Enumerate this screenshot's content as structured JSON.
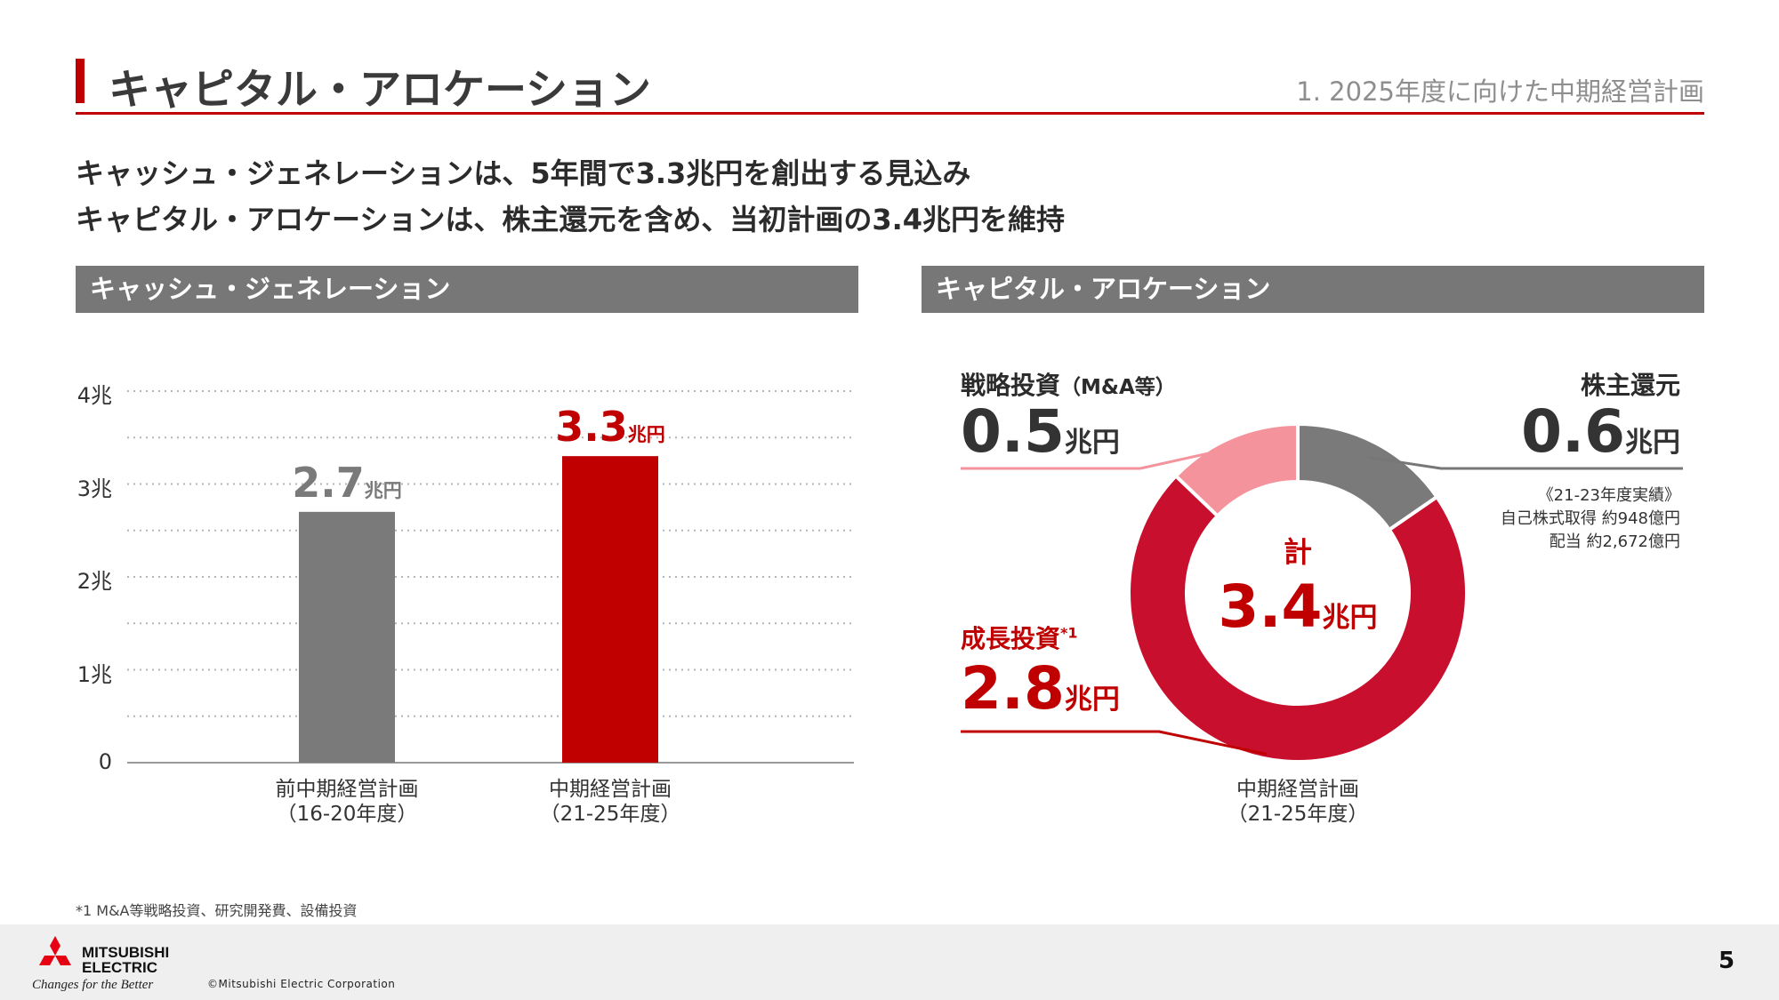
{
  "header": {
    "title": "キャピタル・アロケーション",
    "section": "1. 2025年度に向けた中期経営計画"
  },
  "lead": {
    "line1": "キャッシュ・ジェネレーションは、5年間で3.3兆円を創出する見込み",
    "line2": "キャピタル・アロケーションは、株主還元を含め、当初計画の3.4兆円を維持"
  },
  "panels": {
    "left_title": "キャッシュ・ジェネレーション",
    "right_title": "キャピタル・アロケーション"
  },
  "chart_data": [
    {
      "type": "bar",
      "categories": [
        "前中期経営計画\n（16-20年度）",
        "中期経営計画\n（21-25年度）"
      ],
      "category_lines": [
        [
          "前中期経営計画",
          "（16-20年度）"
        ],
        [
          "中期経営計画",
          "（21-25年度）"
        ]
      ],
      "values": [
        2.7,
        3.3
      ],
      "value_labels": [
        {
          "value": "2.7",
          "unit": "兆円"
        },
        {
          "value": "3.3",
          "unit": "兆円"
        }
      ],
      "bar_colors": [
        "#7a7a7a",
        "#c00000"
      ],
      "label_colors": [
        "#7a7a7a",
        "#c00000"
      ],
      "yticks": [
        {
          "value": 0,
          "label": "0"
        },
        {
          "value": 1,
          "label": "1兆"
        },
        {
          "value": 2,
          "label": "2兆"
        },
        {
          "value": 3,
          "label": "3兆"
        },
        {
          "value": 4,
          "label": "4兆"
        }
      ],
      "ylim": [
        0,
        4
      ],
      "grid": "dotted, every 0.5兆"
    },
    {
      "type": "pie",
      "style": "donut",
      "categories": [
        "株主還元",
        "成長投資*1",
        "戦略投資（M&A等）"
      ],
      "values": [
        0.6,
        2.8,
        0.5
      ],
      "colors": [
        "#7a7a7a",
        "#c8102e",
        "#f4939b"
      ],
      "center": {
        "label": "計",
        "value": "3.4",
        "unit": "兆円"
      },
      "caption_lines": [
        "中期経営計画",
        "（21-25年度）"
      ]
    }
  ],
  "donut_labels": {
    "shareholder": {
      "title": "株主還元",
      "value": "0.6",
      "unit": "兆円",
      "color": "#333333",
      "notes": [
        "《21-23年度実績》",
        "自己株式取得 約948億円",
        "配当 約2,672億円"
      ]
    },
    "growth": {
      "title_main": "成長投資",
      "title_sup": "*1",
      "value": "2.8",
      "unit": "兆円",
      "color": "#c00000"
    },
    "strategic": {
      "title_main": "戦略投資",
      "title_paren": "（M&A等）",
      "value": "0.5",
      "unit": "兆円",
      "color": "#333333"
    }
  },
  "footnote": "*1 M&A等戦略投資、研究開発費、設備投資",
  "footer": {
    "logo_line1": "MITSUBISHI",
    "logo_line2": "ELECTRIC",
    "tagline": "Changes for the Better",
    "copyright": "©Mitsubishi Electric Corporation",
    "page_number": "5"
  }
}
